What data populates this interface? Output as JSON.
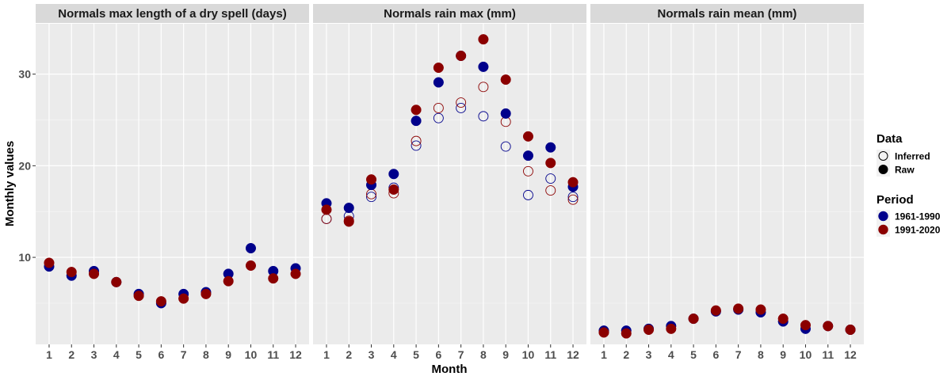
{
  "chart_data": {
    "type": "scatter",
    "xlabel": "Month",
    "ylabel": "Monthly values",
    "x": [
      1,
      2,
      3,
      4,
      5,
      6,
      7,
      8,
      9,
      10,
      11,
      12
    ],
    "x_ticks": [
      "1",
      "2",
      "3",
      "4",
      "5",
      "6",
      "7",
      "8",
      "9",
      "10",
      "11",
      "12"
    ],
    "y_ticks": [
      "10",
      "20",
      "30"
    ],
    "y_tick_values": [
      10,
      20,
      30
    ],
    "ylim": [
      0.5,
      35.5
    ],
    "xlim": [
      0.4,
      12.6
    ],
    "grid": true,
    "legend": {
      "position": "right",
      "data_title": "Data",
      "data_entries": [
        {
          "label": "Inferred",
          "style": "hollow"
        },
        {
          "label": "Raw",
          "style": "filled"
        }
      ],
      "period_title": "Period",
      "period_entries": [
        {
          "label": "1961-1990",
          "color": "#00008b"
        },
        {
          "label": "1991-2020",
          "color": "#8b0000"
        }
      ]
    },
    "panels": [
      {
        "title": "Normals max length of a dry spell (days)",
        "series": [
          {
            "period": "1961-1990",
            "data": "Raw",
            "values": [
              9.0,
              8.0,
              8.5,
              7.3,
              6.0,
              5.0,
              6.0,
              6.2,
              8.2,
              11.0,
              8.5,
              8.8
            ]
          },
          {
            "period": "1991-2020",
            "data": "Raw",
            "values": [
              9.4,
              8.4,
              8.2,
              7.3,
              5.8,
              5.2,
              5.5,
              6.0,
              7.4,
              9.1,
              7.7,
              8.2
            ]
          }
        ]
      },
      {
        "title": "Normals rain max (mm)",
        "series": [
          {
            "period": "1961-1990",
            "data": "Raw",
            "values": [
              15.9,
              15.4,
              17.9,
              19.1,
              24.9,
              29.1,
              32.0,
              30.8,
              25.7,
              21.1,
              22.0,
              17.7
            ]
          },
          {
            "period": "1991-2020",
            "data": "Raw",
            "values": [
              15.2,
              13.9,
              18.5,
              17.4,
              26.1,
              30.7,
              32.0,
              33.8,
              29.4,
              23.2,
              20.3,
              18.2
            ]
          },
          {
            "period": "1961-1990",
            "data": "Inferred",
            "values": [
              14.2,
              14.5,
              16.6,
              17.6,
              22.2,
              25.2,
              26.3,
              25.4,
              22.1,
              16.8,
              18.6,
              16.6
            ]
          },
          {
            "period": "1991-2020",
            "data": "Inferred",
            "values": [
              14.2,
              14.0,
              16.9,
              17.0,
              22.7,
              26.3,
              26.9,
              28.6,
              24.8,
              19.4,
              17.3,
              16.3
            ]
          }
        ]
      },
      {
        "title": "Normals rain mean (mm)",
        "series": [
          {
            "period": "1961-1990",
            "data": "Raw",
            "values": [
              2.0,
              2.0,
              2.2,
              2.5,
              3.3,
              4.1,
              4.3,
              4.0,
              3.0,
              2.2,
              2.5,
              2.1
            ]
          },
          {
            "period": "1991-2020",
            "data": "Raw",
            "values": [
              1.8,
              1.7,
              2.1,
              2.2,
              3.3,
              4.2,
              4.4,
              4.3,
              3.3,
              2.6,
              2.5,
              2.1
            ]
          }
        ]
      }
    ]
  }
}
